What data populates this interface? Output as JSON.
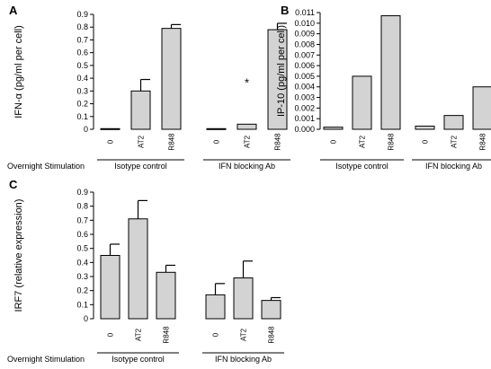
{
  "figure": {
    "row_label": "Overnight Stimulation",
    "colors": {
      "bar_fill": "#d3d3d3",
      "stroke": "#000000",
      "text": "#000000"
    }
  },
  "chart_data": [
    {
      "panel": "A",
      "type": "bar",
      "ylabel": "IFN-α (pg/ml per cell)",
      "ylim": [
        0,
        0.9
      ],
      "yticks": [
        "0",
        "0.1",
        "0.2",
        "0.3",
        "0.4",
        "0.5",
        "0.6",
        "0.7",
        "0.8",
        "0.9"
      ],
      "groups": [
        {
          "label": "Isotype control",
          "bars": [
            {
              "category": "0",
              "value": 0.005,
              "error": 0
            },
            {
              "category": "AT2",
              "value": 0.3,
              "error": 0.09
            },
            {
              "category": "R848",
              "value": 0.79,
              "error": 0.03
            }
          ]
        },
        {
          "label": "IFN blocking Ab",
          "bars": [
            {
              "category": "0",
              "value": 0.005,
              "error": 0
            },
            {
              "category": "AT2",
              "value": 0.04,
              "error": 0,
              "annotation": "*"
            },
            {
              "category": "R848",
              "value": 0.78,
              "error": 0.05
            }
          ]
        }
      ]
    },
    {
      "panel": "B",
      "type": "bar",
      "ylabel": "IP-10 (pg/ml per cell)",
      "ylim": [
        0,
        0.011
      ],
      "yticks": [
        "0.000",
        "0.001",
        "0.002",
        "0.003",
        "0.004",
        "0.005",
        "0.006",
        "0.007",
        "0.008",
        "0.009",
        "0.010",
        "0.011"
      ],
      "groups": [
        {
          "label": "Isotype control",
          "bars": [
            {
              "category": "0",
              "value": 0.0002,
              "error": 0
            },
            {
              "category": "AT2",
              "value": 0.005,
              "error": 0
            },
            {
              "category": "R848",
              "value": 0.0107,
              "error": 0
            }
          ]
        },
        {
          "label": "IFN blocking Ab",
          "bars": [
            {
              "category": "0",
              "value": 0.0003,
              "error": 0
            },
            {
              "category": "AT2",
              "value": 0.0013,
              "error": 0
            },
            {
              "category": "R848",
              "value": 0.004,
              "error": 0
            }
          ]
        }
      ]
    },
    {
      "panel": "C",
      "type": "bar",
      "ylabel": "IRF7 (relative expression)",
      "ylim": [
        0,
        0.9
      ],
      "yticks": [
        "0",
        "0.1",
        "0.2",
        "0.3",
        "0.4",
        "0.5",
        "0.6",
        "0.7",
        "0.8",
        "0.9"
      ],
      "groups": [
        {
          "label": "Isotype control",
          "bars": [
            {
              "category": "0",
              "value": 0.45,
              "error": 0.08
            },
            {
              "category": "AT2",
              "value": 0.71,
              "error": 0.13
            },
            {
              "category": "R848",
              "value": 0.33,
              "error": 0.05
            }
          ]
        },
        {
          "label": "IFN blocking Ab",
          "bars": [
            {
              "category": "0",
              "value": 0.17,
              "error": 0.08
            },
            {
              "category": "AT2",
              "value": 0.29,
              "error": 0.12
            },
            {
              "category": "R848",
              "value": 0.13,
              "error": 0.02
            }
          ]
        }
      ]
    }
  ]
}
